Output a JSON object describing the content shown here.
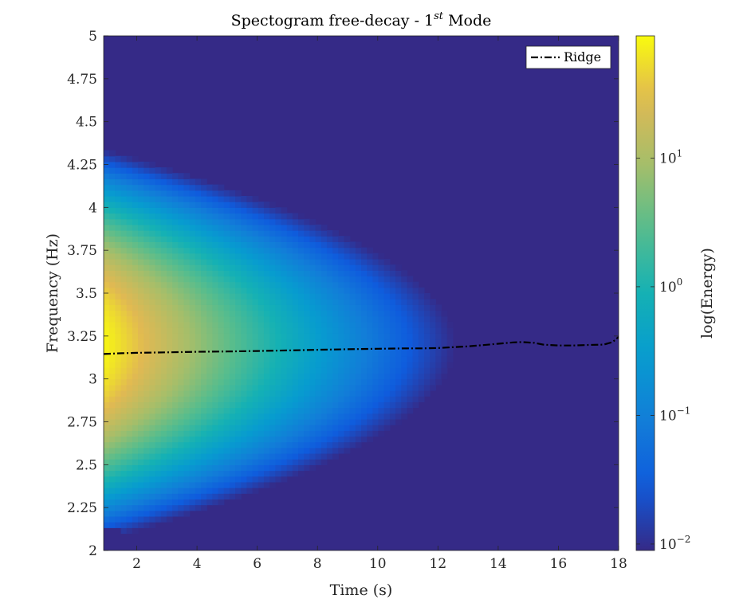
{
  "chart_data": {
    "type": "heatmap",
    "title": "Spectogram free-decay - 1",
    "title_superscript": "st",
    "title_suffix": " Mode",
    "xlabel": "Time (s)",
    "ylabel": "Frequency (Hz)",
    "colorbar_label": "log(Energy)",
    "colorscale": "parula",
    "color_scale_type": "log",
    "xlim": [
      0.9,
      18
    ],
    "ylim": [
      2,
      5
    ],
    "x_ticks": [
      2,
      4,
      6,
      8,
      10,
      12,
      14,
      16,
      18
    ],
    "x_tick_labels": [
      "2",
      "4",
      "6",
      "8",
      "10",
      "12",
      "14",
      "16",
      "18"
    ],
    "y_ticks": [
      2,
      2.25,
      2.5,
      2.75,
      3,
      3.25,
      3.5,
      3.75,
      4,
      4.25,
      4.5,
      4.75,
      5
    ],
    "y_tick_labels": [
      "2",
      "2.25",
      "2.5",
      "2.75",
      "3",
      "3.25",
      "3.5",
      "3.75",
      "4",
      "4.25",
      "4.5",
      "4.75",
      "5"
    ],
    "colorbar": {
      "range_log10": [
        -2.05,
        1.95
      ],
      "ticks_log10": [
        -2,
        -1,
        0,
        1
      ],
      "tick_base": "10",
      "tick_exponents": [
        "−2",
        "−1",
        "0",
        "1"
      ]
    },
    "grid": false,
    "legend": {
      "position": "top-right",
      "entries": [
        "Ridge"
      ]
    },
    "series": [
      {
        "name": "Ridge",
        "style": "dash-dot",
        "color": "#000000",
        "x": [
          0.9,
          1.5,
          2,
          3,
          4,
          5,
          6,
          7,
          8,
          9,
          10,
          11,
          11.5,
          12,
          12.5,
          13,
          13.5,
          14,
          14.5,
          14.8,
          15.2,
          15.5,
          16,
          16.5,
          17,
          17.5,
          17.8,
          18
        ],
        "y": [
          3.145,
          3.15,
          3.152,
          3.155,
          3.158,
          3.16,
          3.163,
          3.166,
          3.17,
          3.173,
          3.176,
          3.178,
          3.178,
          3.18,
          3.185,
          3.19,
          3.197,
          3.205,
          3.213,
          3.215,
          3.21,
          3.2,
          3.195,
          3.195,
          3.198,
          3.2,
          3.215,
          3.245
        ]
      }
    ],
    "energy_model": {
      "peak_log10": 1.92,
      "center_freq_hz": 3.2,
      "decay_per_s": 0.34,
      "bandwidth_hz": 0.6,
      "floor_log10": -2.05
    }
  }
}
